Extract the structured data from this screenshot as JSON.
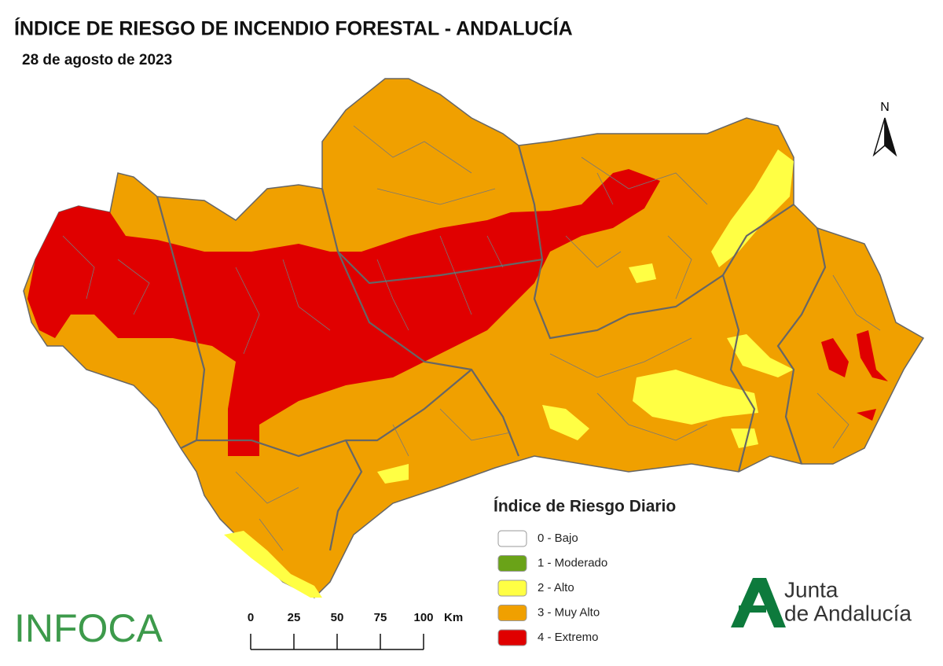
{
  "header": {
    "title": "ÍNDICE DE RIESGO DE INCENDIO FORESTAL - ANDALUCÍA",
    "date": "28 de agosto de 2023"
  },
  "north": "N",
  "legend": {
    "title": "Índice de Riesgo Diario",
    "items": [
      {
        "label": "0 - Bajo",
        "color": "#ffffff"
      },
      {
        "label": "1 - Moderado",
        "color": "#6aa318"
      },
      {
        "label": "2 - Alto",
        "color": "#ffff44"
      },
      {
        "label": "3 - Muy Alto",
        "color": "#f0a000"
      },
      {
        "label": "4 - Extremo",
        "color": "#e00000"
      }
    ]
  },
  "scale_bar": {
    "ticks": [
      0,
      25,
      50,
      75,
      100
    ],
    "unit": "Km"
  },
  "logos": {
    "infoca": "INFOCA",
    "junta_line1": "Junta",
    "junta_line2": "de Andalucía"
  }
}
